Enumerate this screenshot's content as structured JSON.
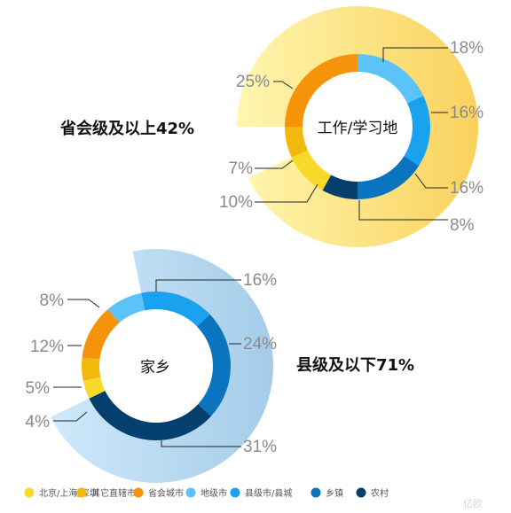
{
  "chart_data": [
    {
      "type": "pie",
      "center_label": "工作/学习地",
      "group_label": "省会级及以上42%",
      "categories": [
        "北京/上海/深圳",
        "其它直辖市",
        "省会城市",
        "地级市",
        "县级市/县城",
        "乡镇",
        "农村"
      ],
      "values": [
        10,
        7,
        25,
        18,
        16,
        16,
        8
      ],
      "labels": [
        "10%",
        "7%",
        "25%",
        "18%",
        "16%",
        "16%",
        "8%"
      ]
    },
    {
      "type": "pie",
      "center_label": "家乡",
      "group_label": "县级及以下71%",
      "categories": [
        "北京/上海/深圳",
        "其它直辖市",
        "省会城市",
        "地级市",
        "县级市/县城",
        "乡镇",
        "农村"
      ],
      "values": [
        4,
        5,
        12,
        8,
        16,
        24,
        31
      ],
      "labels": [
        "4%",
        "5%",
        "12%",
        "8%",
        "16%",
        "24%",
        "31%"
      ]
    }
  ],
  "legend": [
    {
      "label": "北京/上海/深圳",
      "color": "#f8d92a"
    },
    {
      "label": "其它直辖市",
      "color": "#f3b80c"
    },
    {
      "label": "省会城市",
      "color": "#f5930a"
    },
    {
      "label": "地级市",
      "color": "#5bc3f8"
    },
    {
      "label": "县级市/县城",
      "color": "#18a2f0"
    },
    {
      "label": "乡镇",
      "color": "#0a74bf"
    },
    {
      "label": "农村",
      "color": "#053f6e"
    }
  ],
  "watermark": "亿欧"
}
